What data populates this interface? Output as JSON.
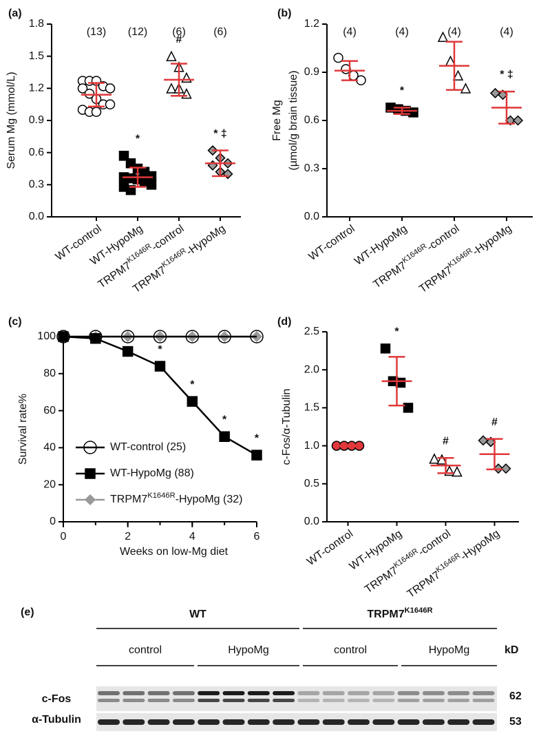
{
  "chart_data": [
    {
      "type": "dotplot",
      "label": "(a)",
      "ylabel": "Serum Mg (mmol/L)",
      "categories": [
        "WT-control",
        "WT-HypoMg",
        "TRPM7K1646R-control",
        "TRPM7K1646R-HypoMg"
      ],
      "counts": [
        "(13)",
        "(12)",
        "(6)",
        "(6)"
      ],
      "significance": [
        null,
        "*",
        "#",
        "* ‡"
      ],
      "points": [
        [
          1.27,
          1.27,
          1.27,
          1.22,
          1.2,
          1.2,
          1.15,
          1.1,
          1.05,
          1.05,
          1.0,
          0.98,
          0.98
        ],
        [
          0.57,
          0.5,
          0.45,
          0.42,
          0.38,
          0.37,
          0.36,
          0.35,
          0.33,
          0.3,
          0.28,
          0.25
        ],
        [
          1.5,
          1.4,
          1.3,
          1.2,
          1.2,
          1.15
        ],
        [
          0.62,
          0.55,
          0.5,
          0.48,
          0.42,
          0.4
        ]
      ],
      "means": [
        1.14,
        0.37,
        1.28,
        0.5
      ],
      "sd": [
        0.11,
        0.09,
        0.15,
        0.12
      ],
      "markers": [
        "circle",
        "square",
        "triangle",
        "diamond"
      ],
      "marker_fills": [
        "#ffffff",
        "#000000",
        "#ffffff",
        "#999999"
      ],
      "mean_color": "#e0383a",
      "ylim": [
        0,
        1.8
      ],
      "yticks": [
        {
          "value": 0,
          "label": "0.0"
        },
        0.3,
        0.6,
        0.9,
        1.2,
        1.5,
        1.8
      ]
    },
    {
      "type": "dotplot",
      "label": "(b)",
      "ylabel": [
        "Free Mg",
        "(µmol/g brain tissue)"
      ],
      "categories": [
        "WT-control",
        "WT-HypoMg",
        "TRPM7K1646R-control",
        "TRPM7K1646R-HypoMg"
      ],
      "counts": [
        "(4)",
        "(4)",
        "(4)",
        "(4)"
      ],
      "significance": [
        null,
        "*",
        null,
        "* ‡"
      ],
      "points": [
        [
          0.99,
          0.92,
          0.88,
          0.85
        ],
        [
          0.68,
          0.67,
          0.66,
          0.65
        ],
        [
          1.12,
          0.97,
          0.88,
          0.8
        ],
        [
          0.77,
          0.76,
          0.6,
          0.6
        ]
      ],
      "means": [
        0.91,
        0.66,
        0.94,
        0.68
      ],
      "sd": [
        0.06,
        0.02,
        0.15,
        0.1
      ],
      "markers": [
        "circle",
        "square",
        "triangle",
        "diamond"
      ],
      "marker_fills": [
        "#ffffff",
        "#000000",
        "#ffffff",
        "#999999"
      ],
      "mean_color": "#e0383a",
      "ylim": [
        0,
        1.2
      ],
      "yticks": [
        {
          "value": 0,
          "label": "0.0"
        },
        0.3,
        0.6,
        0.9,
        1.2
      ]
    },
    {
      "type": "line",
      "label": "(c)",
      "xlabel": "Weeks on low-Mg diet",
      "ylabel": "Survival rate%",
      "x": [
        0,
        1,
        2,
        3,
        4,
        5,
        6
      ],
      "series": [
        {
          "name": "WT-control (25)",
          "color": "#000000",
          "marker": "circle",
          "marker_fill": "none",
          "values": [
            100,
            100,
            100,
            100,
            100,
            100,
            100
          ],
          "marks": [
            null,
            null,
            null,
            null,
            null,
            null,
            null
          ]
        },
        {
          "name": "WT-HypoMg (88)",
          "color": "#000000",
          "marker": "square",
          "marker_fill": "#000000",
          "values": [
            100,
            99,
            92,
            84,
            65,
            46,
            36
          ],
          "marks": [
            null,
            null,
            null,
            "*",
            "*",
            "*",
            "*"
          ]
        },
        {
          "name": "TRPM7K1646R-HypoMg (32)",
          "color": "#999999",
          "marker": "diamond",
          "marker_fill": "#999999",
          "values": [
            100,
            100,
            100,
            100,
            100,
            100,
            100
          ],
          "marks": [
            null,
            null,
            null,
            null,
            null,
            null,
            null
          ]
        }
      ],
      "xlim": [
        0,
        6
      ],
      "xticks": [
        0,
        2,
        4,
        6
      ],
      "ylim": [
        0,
        100
      ],
      "yticks": [
        0,
        20,
        40,
        60,
        80,
        100
      ]
    },
    {
      "type": "dotplot",
      "label": "(d)",
      "ylabel": "c-Fos/α-Tubulin",
      "categories": [
        "WT-control",
        "WT-HypoMg",
        "TRPM7K1646R-control",
        "TRPM7K1646R-HypoMg"
      ],
      "significance": [
        null,
        "*",
        "#",
        "#"
      ],
      "points": [
        [
          1.0,
          1.0,
          1.0,
          1.0
        ],
        [
          2.28,
          1.85,
          1.83,
          1.5
        ],
        [
          0.83,
          0.82,
          0.67,
          0.66
        ],
        [
          1.07,
          1.05,
          0.7,
          0.7
        ]
      ],
      "means": [
        1.0,
        1.85,
        0.74,
        0.89
      ],
      "sd": [
        0.01,
        0.32,
        0.1,
        0.2
      ],
      "markers": [
        "circle",
        "square",
        "triangle",
        "diamond"
      ],
      "marker_fills": [
        "#e0383a",
        "#000000",
        "#ffffff",
        "#999999"
      ],
      "mean_color": "#e0383a",
      "ylim": [
        0,
        2.5
      ],
      "yticks": [
        {
          "value": 0,
          "label": "0.0"
        },
        0.5,
        {
          "value": 1,
          "label": "1.0"
        },
        1.5,
        {
          "value": 2,
          "label": "2.0"
        },
        2.5
      ]
    }
  ],
  "blot": {
    "label": "(e)",
    "groups": [
      "WT",
      "TRPM7K1646R"
    ],
    "conditions": [
      "control",
      "HypoMg",
      "control",
      "HypoMg"
    ],
    "unit": "kD",
    "rows": [
      {
        "name": "c-Fos",
        "kd": 62
      },
      {
        "name": "α-Tubulin",
        "kd": 53
      }
    ]
  }
}
